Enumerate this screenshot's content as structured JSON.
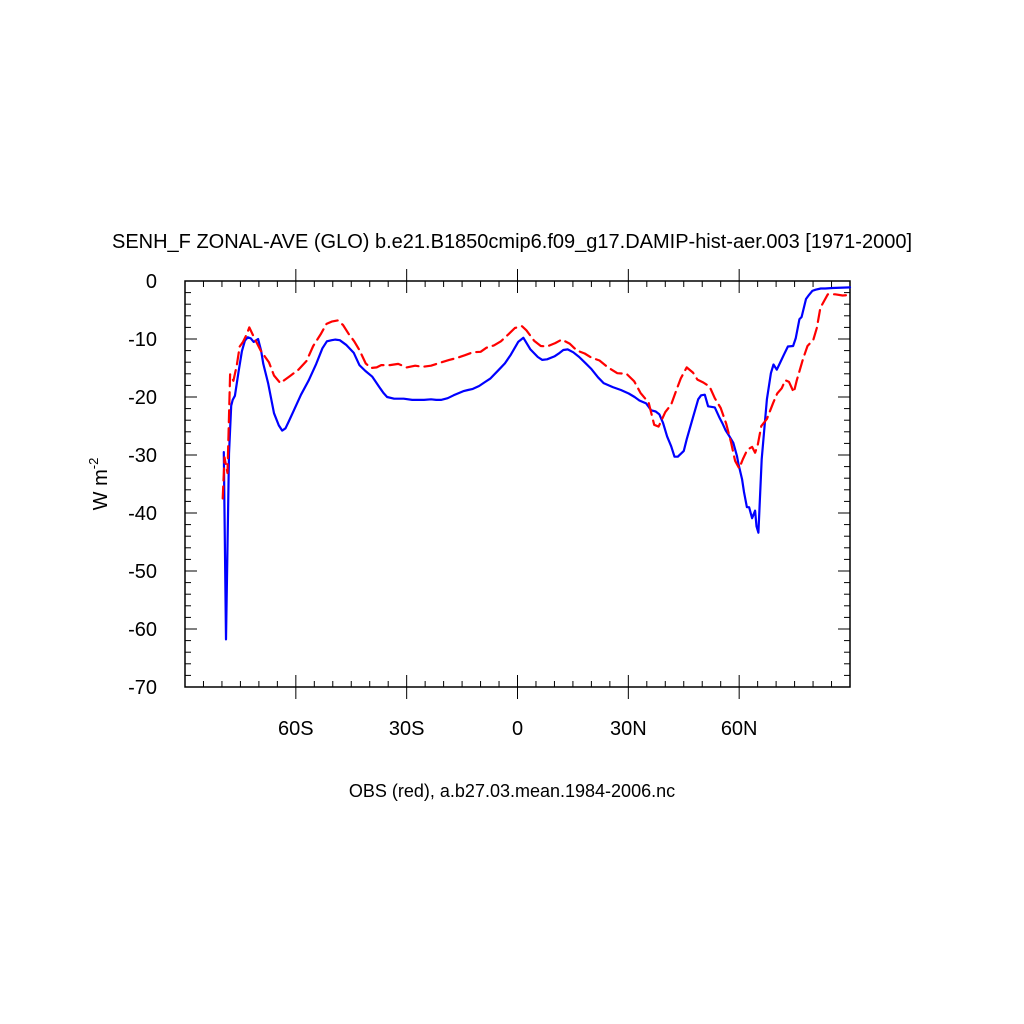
{
  "chart_data": {
    "type": "line",
    "title": "SENH_F ZONAL-AVE (GLO) b.e21.B1850cmip6.f09_g17.DAMIP-hist-aer.003 [1971-2000]",
    "xlabel": "OBS (red), a.b27.03.mean.1984-2006.nc",
    "ylabel": "W m",
    "ylabel_sup": "-2",
    "xlim": [
      -90,
      90
    ],
    "ylim": [
      -70,
      0
    ],
    "xticks": [
      {
        "value": -60,
        "label": "60S"
      },
      {
        "value": -30,
        "label": "30S"
      },
      {
        "value": 0,
        "label": "0"
      },
      {
        "value": 30,
        "label": "30N"
      },
      {
        "value": 60,
        "label": "60N"
      }
    ],
    "yticks": [
      {
        "value": 0,
        "label": "0"
      },
      {
        "value": -10,
        "label": "-10"
      },
      {
        "value": -20,
        "label": "-20"
      },
      {
        "value": -30,
        "label": "-30"
      },
      {
        "value": -40,
        "label": "-40"
      },
      {
        "value": -50,
        "label": "-50"
      },
      {
        "value": -60,
        "label": "-60"
      },
      {
        "value": -70,
        "label": "-70"
      }
    ],
    "grid": false,
    "legend": "none",
    "series": [
      {
        "color": "#0000ff",
        "dash": "solid",
        "x": [
          -79.5,
          -78.9,
          -78.1,
          -77.5,
          -77.1,
          -76.5,
          -75.5,
          -74.6,
          -73.8,
          -73.0,
          -72.2,
          -71.4,
          -70.2,
          -69.4,
          -68.8,
          -67.5,
          -65.9,
          -64.6,
          -63.7,
          -62.8,
          -61.9,
          -60.6,
          -58.6,
          -56.5,
          -54.5,
          -52.8,
          -51.6,
          -50.3,
          -49.3,
          -48.1,
          -46.4,
          -44.3,
          -42.8,
          -41.2,
          -39.3,
          -37.5,
          -36.3,
          -35.3,
          -33.4,
          -30.8,
          -28.5,
          -25.3,
          -23.4,
          -22.0,
          -20.7,
          -18.9,
          -17.3,
          -14.7,
          -13.4,
          -12.1,
          -10.4,
          -9.0,
          -7.3,
          -5.2,
          -3.4,
          -1.8,
          0.2,
          1.6,
          3.5,
          5.5,
          6.7,
          8.0,
          10.0,
          11.4,
          12.4,
          13.6,
          15.1,
          16.7,
          18.5,
          19.9,
          21.8,
          23.3,
          25.8,
          28.0,
          30.1,
          31.7,
          33.0,
          34.8,
          36.2,
          37.4,
          38.4,
          39.4,
          40.5,
          41.6,
          42.5,
          43.4,
          45.0,
          45.8,
          47.5,
          48.9,
          49.7,
          50.7,
          51.6,
          53.4,
          54.7,
          55.6,
          56.3,
          57.3,
          58.4,
          59.4,
          59.8,
          60.8,
          61.3,
          62.1,
          62.7,
          63.5,
          64.3,
          64.7,
          65.2,
          66.1,
          67.5,
          68.6,
          69.3,
          70.2,
          71.0,
          72.1,
          73.2,
          74.6,
          75.3,
          76.3,
          76.9,
          78.1,
          78.9,
          79.8,
          80.7,
          82.1,
          83.3,
          85.3,
          90.0
        ],
        "y": [
          -29.5,
          -61.8,
          -29.8,
          -21.5,
          -20.5,
          -19.8,
          -15.6,
          -12.1,
          -10.3,
          -9.7,
          -9.9,
          -10.5,
          -10.0,
          -12.0,
          -14.3,
          -17.6,
          -22.8,
          -24.9,
          -25.8,
          -25.4,
          -24.2,
          -22.4,
          -19.6,
          -17.1,
          -14.3,
          -11.6,
          -10.4,
          -10.2,
          -10.1,
          -10.2,
          -11.0,
          -12.4,
          -14.5,
          -15.5,
          -16.5,
          -18.2,
          -19.3,
          -20.0,
          -20.3,
          -20.3,
          -20.5,
          -20.5,
          -20.4,
          -20.5,
          -20.5,
          -20.2,
          -19.7,
          -19.0,
          -18.8,
          -18.6,
          -18.1,
          -17.5,
          -16.8,
          -15.4,
          -14.2,
          -12.7,
          -10.5,
          -9.8,
          -11.8,
          -13.1,
          -13.6,
          -13.5,
          -13.0,
          -12.4,
          -11.9,
          -11.8,
          -12.3,
          -13.1,
          -14.2,
          -15.1,
          -16.6,
          -17.6,
          -18.3,
          -18.8,
          -19.4,
          -20.0,
          -20.6,
          -21.1,
          -22.3,
          -22.5,
          -23.0,
          -24.5,
          -26.8,
          -28.5,
          -30.3,
          -30.3,
          -29.3,
          -27.3,
          -23.5,
          -20.4,
          -19.7,
          -19.6,
          -21.6,
          -21.8,
          -23.6,
          -24.7,
          -25.7,
          -26.7,
          -27.9,
          -30.2,
          -31.5,
          -34.2,
          -36.4,
          -39.0,
          -39.0,
          -40.9,
          -39.6,
          -42.3,
          -43.4,
          -30.7,
          -20.4,
          -15.9,
          -14.4,
          -15.3,
          -14.2,
          -12.7,
          -11.3,
          -11.2,
          -9.9,
          -6.6,
          -6.2,
          -3.1,
          -2.4,
          -1.7,
          -1.5,
          -1.3,
          -1.3,
          -1.2,
          -1.1
        ]
      },
      {
        "color": "#ff0000",
        "dash": "dashed",
        "x": [
          -79.8,
          -79.3,
          -78.5,
          -77.8,
          -76.9,
          -76.0,
          -75.2,
          -74.3,
          -73.3,
          -72.6,
          -71.2,
          -69.5,
          -67.3,
          -65.9,
          -64.2,
          -61.6,
          -59.3,
          -57.1,
          -55.3,
          -53.3,
          -51.7,
          -50.3,
          -48.6,
          -47.2,
          -45.6,
          -44.2,
          -42.7,
          -41.1,
          -39.7,
          -38.1,
          -36.9,
          -34.5,
          -32.3,
          -30.0,
          -27.7,
          -25.7,
          -23.4,
          -21.0,
          -18.5,
          -16.5,
          -14.2,
          -12.1,
          -10.0,
          -8.4,
          -6.4,
          -4.5,
          -2.5,
          -0.7,
          1.2,
          2.4,
          4.5,
          6.3,
          8.0,
          10.2,
          12.0,
          14.1,
          16.1,
          18.2,
          20.0,
          22.2,
          24.5,
          27.0,
          29.5,
          31.6,
          33.3,
          35.5,
          37.0,
          38.2,
          40.0,
          41.6,
          43.0,
          44.2,
          45.8,
          47.5,
          48.7,
          50.3,
          52.0,
          53.4,
          55.0,
          56.5,
          57.8,
          58.9,
          60.0,
          61.0,
          62.2,
          63.5,
          64.3,
          65.0,
          66.0,
          67.5,
          69.2,
          70.3,
          71.5,
          72.5,
          73.5,
          74.8,
          75.6,
          77.3,
          78.5,
          80.1,
          81.0,
          82.0,
          84.0,
          86.0,
          88.0,
          90.0
        ],
        "y": [
          -37.5,
          -30.4,
          -33.1,
          -16.1,
          -17.2,
          -14.6,
          -11.3,
          -10.5,
          -9.2,
          -8.0,
          -9.9,
          -12.0,
          -14.0,
          -16.3,
          -17.6,
          -16.4,
          -15.3,
          -13.8,
          -11.2,
          -9.2,
          -7.4,
          -7.0,
          -6.8,
          -7.6,
          -9.2,
          -10.4,
          -12.0,
          -14.2,
          -15.0,
          -14.9,
          -14.5,
          -14.5,
          -14.3,
          -14.9,
          -14.6,
          -14.8,
          -14.6,
          -14.1,
          -13.6,
          -13.3,
          -12.8,
          -12.3,
          -12.2,
          -11.5,
          -11.1,
          -10.4,
          -9.2,
          -8.1,
          -7.8,
          -8.5,
          -10.3,
          -11.2,
          -11.3,
          -10.7,
          -10.1,
          -10.8,
          -12.0,
          -12.5,
          -13.2,
          -13.7,
          -14.9,
          -15.9,
          -16.0,
          -17.3,
          -19.3,
          -21.0,
          -24.8,
          -25.1,
          -22.6,
          -21.3,
          -18.8,
          -16.8,
          -14.9,
          -15.8,
          -17.0,
          -17.5,
          -18.2,
          -20.2,
          -21.9,
          -24.6,
          -27.8,
          -31.0,
          -32.3,
          -30.7,
          -29.1,
          -28.6,
          -29.6,
          -28.4,
          -25.0,
          -23.8,
          -21.0,
          -19.4,
          -18.5,
          -17.1,
          -17.4,
          -19.2,
          -17.1,
          -13.4,
          -11.2,
          -10.1,
          -8.1,
          -4.6,
          -2.3,
          -2.3,
          -2.5,
          -2.4
        ]
      }
    ]
  }
}
